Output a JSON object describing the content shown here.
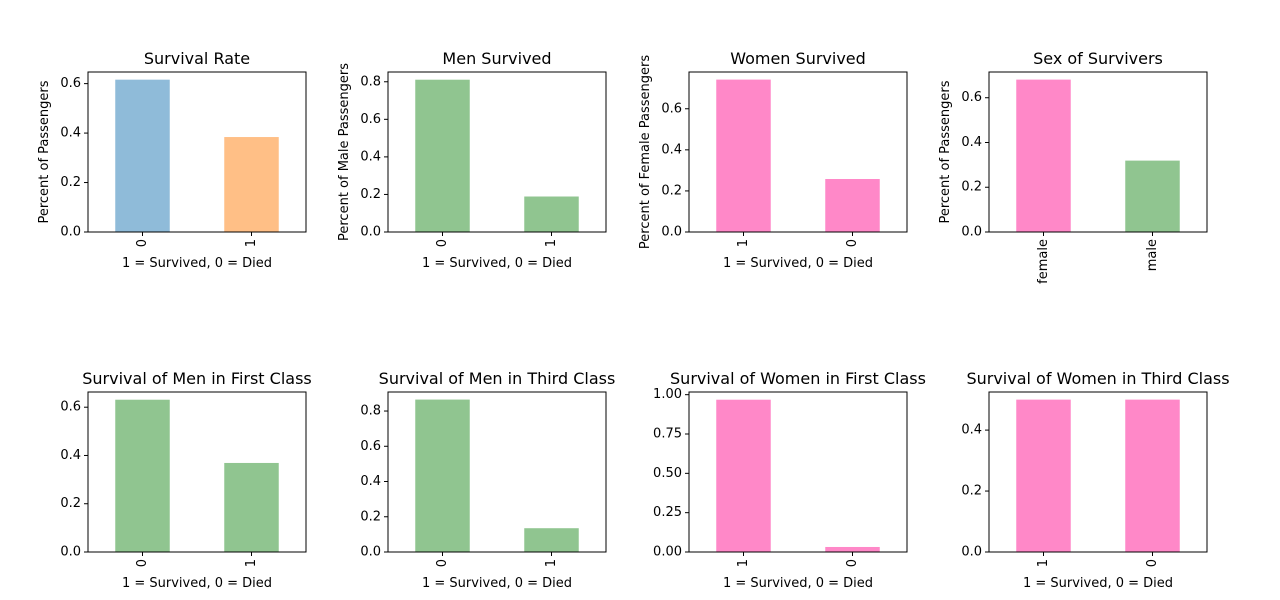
{
  "colors": {
    "blue": "#8fbbd9",
    "orange": "#ffbf86",
    "green": "#90c590",
    "pink": "#ff88c8",
    "axis": "#000000"
  },
  "chart_data": [
    {
      "type": "bar",
      "title": "Survival Rate",
      "xlabel": "1 = Survived, 0 = Died",
      "ylabel": "Percent of Passengers",
      "categories": [
        "0",
        "1"
      ],
      "values": [
        0.616,
        0.384
      ],
      "bar_colors": [
        "blue",
        "orange"
      ],
      "ylim": [
        0,
        0.647
      ],
      "yticks": [
        0.0,
        0.2,
        0.4,
        0.6
      ],
      "tick_decimals": 1,
      "grid": false,
      "legend": "none"
    },
    {
      "type": "bar",
      "title": "Men Survived",
      "xlabel": "1 = Survived, 0 = Died",
      "ylabel": "Percent of Male Passengers",
      "categories": [
        "0",
        "1"
      ],
      "values": [
        0.811,
        0.189
      ],
      "bar_colors": [
        "green",
        "green"
      ],
      "ylim": [
        0,
        0.852
      ],
      "yticks": [
        0.0,
        0.2,
        0.4,
        0.6,
        0.8
      ],
      "tick_decimals": 1,
      "grid": false,
      "legend": "none"
    },
    {
      "type": "bar",
      "title": "Women Survived",
      "xlabel": "1 = Survived, 0 = Died",
      "ylabel": "Percent of Female Passengers",
      "categories": [
        "1",
        "0"
      ],
      "values": [
        0.742,
        0.258
      ],
      "bar_colors": [
        "pink",
        "pink"
      ],
      "ylim": [
        0,
        0.779
      ],
      "yticks": [
        0.0,
        0.2,
        0.4,
        0.6
      ],
      "tick_decimals": 1,
      "grid": false,
      "legend": "none"
    },
    {
      "type": "bar",
      "title": "Sex of Survivers",
      "xlabel": "",
      "ylabel": "Percent of Passengers",
      "categories": [
        "female",
        "male"
      ],
      "values": [
        0.681,
        0.319
      ],
      "bar_colors": [
        "pink",
        "green"
      ],
      "ylim": [
        0,
        0.715
      ],
      "yticks": [
        0.0,
        0.2,
        0.4,
        0.6
      ],
      "tick_decimals": 1,
      "grid": false,
      "legend": "none"
    },
    {
      "type": "bar",
      "title": "Survival of Men in First Class",
      "xlabel": "1 = Survived, 0 = Died",
      "ylabel": "",
      "categories": [
        "0",
        "1"
      ],
      "values": [
        0.631,
        0.369
      ],
      "bar_colors": [
        "green",
        "green"
      ],
      "ylim": [
        0,
        0.663
      ],
      "yticks": [
        0.0,
        0.2,
        0.4,
        0.6
      ],
      "tick_decimals": 1,
      "grid": false,
      "legend": "none"
    },
    {
      "type": "bar",
      "title": "Survival of Men in Third Class",
      "xlabel": "1 = Survived, 0 = Died",
      "ylabel": "",
      "categories": [
        "0",
        "1"
      ],
      "values": [
        0.865,
        0.135
      ],
      "bar_colors": [
        "green",
        "green"
      ],
      "ylim": [
        0,
        0.908
      ],
      "yticks": [
        0.0,
        0.2,
        0.4,
        0.6,
        0.8
      ],
      "tick_decimals": 1,
      "grid": false,
      "legend": "none"
    },
    {
      "type": "bar",
      "title": "Survival of Women in First Class",
      "xlabel": "1 = Survived, 0 = Died",
      "ylabel": "",
      "categories": [
        "1",
        "0"
      ],
      "values": [
        0.968,
        0.032
      ],
      "bar_colors": [
        "pink",
        "pink"
      ],
      "ylim": [
        0,
        1.017
      ],
      "yticks": [
        0.0,
        0.25,
        0.5,
        0.75,
        1.0
      ],
      "tick_decimals": 2,
      "grid": false,
      "legend": "none"
    },
    {
      "type": "bar",
      "title": "Survival of Women in Third Class",
      "xlabel": "1 = Survived, 0 = Died",
      "ylabel": "",
      "categories": [
        "1",
        "0"
      ],
      "values": [
        0.5,
        0.5
      ],
      "bar_colors": [
        "pink",
        "pink"
      ],
      "ylim": [
        0,
        0.525
      ],
      "yticks": [
        0.0,
        0.2,
        0.4
      ],
      "tick_decimals": 1,
      "grid": false,
      "legend": "none"
    }
  ]
}
